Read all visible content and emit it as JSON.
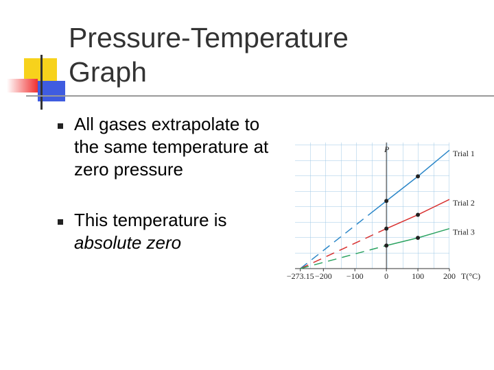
{
  "title": "Pressure-Temperature Graph",
  "bullets": [
    {
      "text": "All gases extrapolate to the same temperature at zero pressure"
    },
    {
      "text": "This temperature is",
      "emphasis": "absolute zero"
    }
  ],
  "chart_data": {
    "type": "line",
    "x_label": "T(°C)",
    "y_label": "P",
    "x": [
      -273.15,
      0,
      100,
      200
    ],
    "series": [
      {
        "name": "Trial 1",
        "color": "#2a86c8",
        "values": [
          0,
          4.4,
          6.0,
          7.7
        ]
      },
      {
        "name": "Trial 2",
        "color": "#d8302f",
        "values": [
          0,
          2.6,
          3.5,
          4.5
        ]
      },
      {
        "name": "Trial 3",
        "color": "#2aa260",
        "values": [
          0,
          1.5,
          2.0,
          2.6
        ]
      }
    ],
    "xlim": [
      -290,
      200
    ],
    "ylim": [
      0,
      8.2
    ],
    "xticks": [
      {
        "value": -273.15,
        "label": "−273.15"
      },
      {
        "value": -200,
        "label": "−200"
      },
      {
        "value": -100,
        "label": "−100"
      },
      0,
      100,
      200
    ],
    "grid": true
  }
}
